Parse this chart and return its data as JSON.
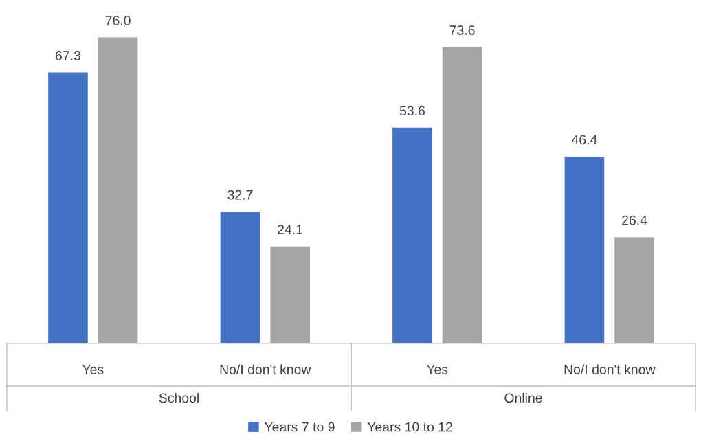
{
  "chart_data": {
    "type": "bar",
    "categories": [
      "Yes",
      "No/I don't know",
      "Yes",
      "No/I don't know"
    ],
    "series": [
      {
        "name": "Years 7 to 9",
        "color": "#4472c4",
        "values": [
          67.3,
          32.7,
          53.6,
          46.4
        ],
        "value_labels": [
          "67.3",
          "32.7",
          "53.6",
          "46.4"
        ]
      },
      {
        "name": "Years 10 to 12",
        "color": "#a5a5a5",
        "values": [
          76.0,
          24.1,
          73.6,
          26.4
        ],
        "value_labels": [
          "76.0",
          "24.1",
          "73.6",
          "26.4"
        ]
      }
    ],
    "annotations": [
      "School",
      "Online"
    ],
    "grid": false,
    "legend": "bottom"
  }
}
